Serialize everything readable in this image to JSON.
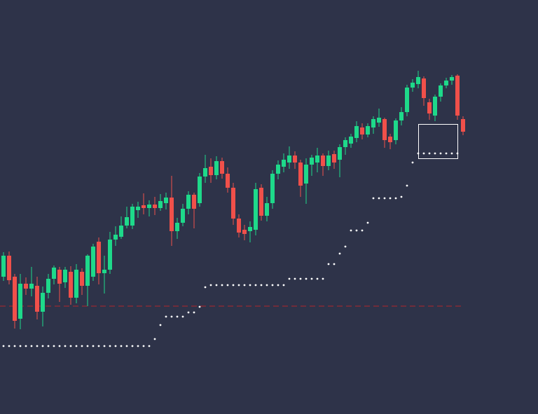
{
  "chart_data": {
    "type": "candlestick",
    "ylim": [
      0,
      591
    ],
    "background": "#2e3349",
    "up_color": "#1ed98a",
    "down_color": "#f0504a",
    "stop_color": "#ffffff",
    "hline_color": "#b3262b",
    "open": [
      196,
      226,
      196,
      136,
      186,
      179,
      183,
      146,
      173,
      193,
      206,
      188,
      203,
      166,
      203,
      183,
      196,
      246,
      201,
      206,
      249,
      253,
      269,
      269,
      291,
      298,
      294,
      299,
      294,
      301,
      309,
      261,
      273,
      293,
      313,
      301,
      339,
      353,
      341,
      361,
      343,
      323,
      279,
      263,
      261,
      263,
      323,
      283,
      301,
      343,
      353,
      359,
      369,
      359,
      329,
      356,
      359,
      369,
      354,
      371,
      363,
      381,
      386,
      394,
      409,
      399,
      409,
      416,
      421,
      396,
      391,
      419,
      431,
      466,
      471,
      479,
      445,
      426,
      453,
      469,
      476,
      483,
      421
    ],
    "high": [
      231,
      232,
      200,
      200,
      195,
      210,
      196,
      182,
      200,
      212,
      210,
      210,
      211,
      214,
      208,
      228,
      243,
      252,
      226,
      260,
      268,
      282,
      296,
      300,
      303,
      315,
      305,
      310,
      314,
      316,
      340,
      280,
      300,
      318,
      316,
      344,
      370,
      365,
      368,
      366,
      352,
      330,
      285,
      270,
      275,
      330,
      328,
      310,
      348,
      362,
      372,
      382,
      375,
      363,
      365,
      370,
      380,
      372,
      376,
      376,
      385,
      395,
      400,
      418,
      415,
      415,
      425,
      436,
      423,
      400,
      422,
      438,
      470,
      478,
      490,
      482,
      450,
      456,
      472,
      480,
      484,
      485,
      425
    ],
    "low": [
      190,
      185,
      122,
      121,
      170,
      168,
      135,
      125,
      165,
      185,
      160,
      180,
      156,
      158,
      170,
      154,
      190,
      185,
      172,
      200,
      240,
      250,
      265,
      264,
      280,
      285,
      282,
      284,
      290,
      292,
      240,
      250,
      268,
      285,
      265,
      296,
      330,
      330,
      335,
      336,
      316,
      270,
      252,
      248,
      245,
      255,
      276,
      275,
      293,
      335,
      345,
      350,
      350,
      310,
      300,
      340,
      345,
      340,
      348,
      350,
      338,
      370,
      380,
      388,
      392,
      395,
      400,
      410,
      380,
      378,
      385,
      412,
      425,
      460,
      465,
      440,
      420,
      418,
      446,
      465,
      470,
      420,
      398
    ],
    "close": [
      226,
      191,
      133,
      186,
      179,
      186,
      146,
      173,
      193,
      209,
      186,
      206,
      166,
      206,
      183,
      226,
      239,
      201,
      206,
      249,
      256,
      269,
      281,
      296,
      296,
      294,
      299,
      294,
      304,
      309,
      261,
      273,
      293,
      313,
      293,
      339,
      351,
      341,
      361,
      343,
      323,
      279,
      259,
      257,
      267,
      321,
      283,
      301,
      343,
      356,
      363,
      369,
      359,
      326,
      356,
      366,
      369,
      354,
      369,
      359,
      381,
      391,
      396,
      411,
      399,
      411,
      421,
      423,
      391,
      388,
      419,
      431,
      466,
      473,
      481,
      451,
      429,
      453,
      469,
      476,
      481,
      426,
      403
    ],
    "stop": [
      97,
      97,
      97,
      97,
      97,
      97,
      97,
      97,
      97,
      97,
      97,
      97,
      97,
      97,
      97,
      97,
      97,
      97,
      97,
      97,
      97,
      97,
      97,
      97,
      97,
      97,
      97,
      107,
      127,
      139,
      139,
      139,
      139,
      145,
      145,
      153,
      181,
      184,
      184,
      184,
      184,
      184,
      184,
      184,
      184,
      184,
      184,
      184,
      184,
      184,
      184,
      193,
      193,
      193,
      193,
      193,
      193,
      193,
      214,
      214,
      229,
      239,
      262,
      262,
      262,
      273,
      308,
      308,
      308,
      308,
      308,
      310,
      326,
      359,
      372,
      372,
      372,
      372,
      372,
      372,
      372,
      372,
      null
    ],
    "hline": 154
  }
}
